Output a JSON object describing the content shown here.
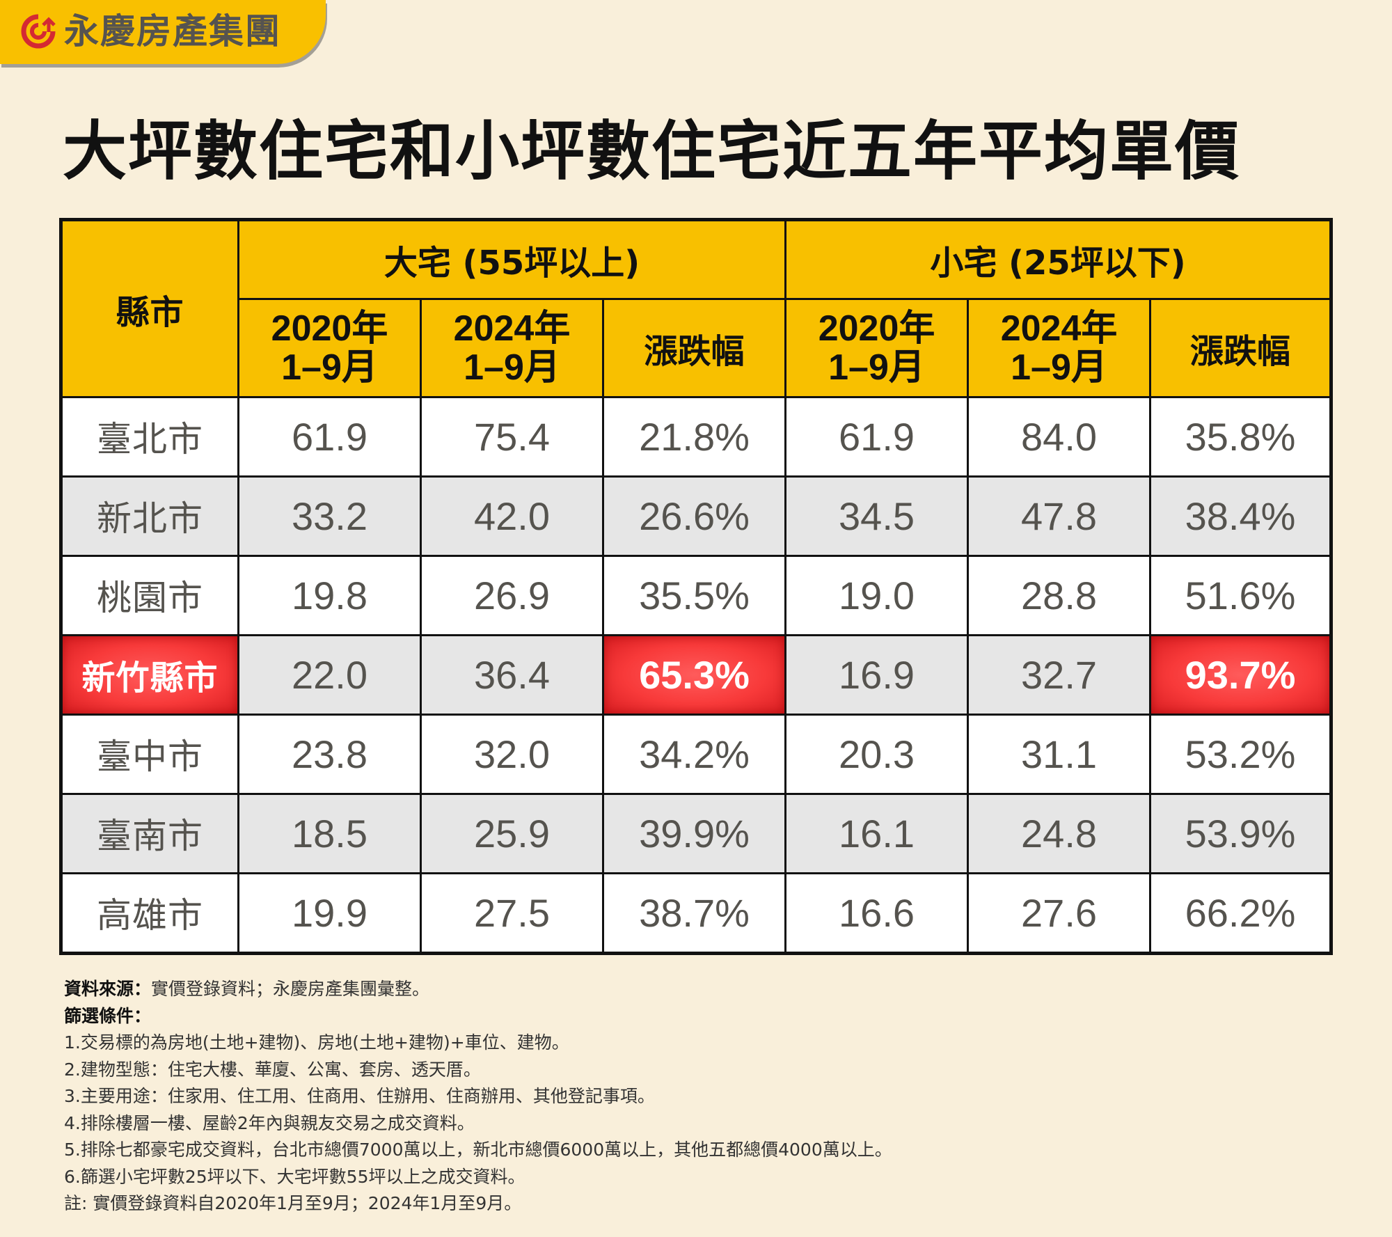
{
  "brand": {
    "name": "永慶房產集團",
    "logo_icon": "yongqing-logo-icon",
    "colors": {
      "banner": "#f9c000",
      "logo_red": "#d42a33",
      "text": "#555350"
    }
  },
  "title": "大坪數住宅和小坪數住宅近五年平均單價",
  "table": {
    "county_header": "縣市",
    "groups": [
      {
        "label": "大宅 (55坪以上)",
        "columns": [
          {
            "year": "2020年",
            "months": "1–9月"
          },
          {
            "year": "2024年",
            "months": "1–9月"
          },
          {
            "label": "漲跌幅"
          }
        ]
      },
      {
        "label": "小宅 (25坪以下)",
        "columns": [
          {
            "year": "2020年",
            "months": "1–9月"
          },
          {
            "year": "2024年",
            "months": "1–9月"
          },
          {
            "label": "漲跌幅"
          }
        ]
      }
    ],
    "rows": [
      {
        "county": "臺北市",
        "large_2020": "61.9",
        "large_2024": "75.4",
        "large_change": "21.8%",
        "small_2020": "61.9",
        "small_2024": "84.0",
        "small_change": "35.8%",
        "highlight": false
      },
      {
        "county": "新北市",
        "large_2020": "33.2",
        "large_2024": "42.0",
        "large_change": "26.6%",
        "small_2020": "34.5",
        "small_2024": "47.8",
        "small_change": "38.4%",
        "highlight": false
      },
      {
        "county": "桃園市",
        "large_2020": "19.8",
        "large_2024": "26.9",
        "large_change": "35.5%",
        "small_2020": "19.0",
        "small_2024": "28.8",
        "small_change": "51.6%",
        "highlight": false
      },
      {
        "county": "新竹縣市",
        "large_2020": "22.0",
        "large_2024": "36.4",
        "large_change": "65.3%",
        "small_2020": "16.9",
        "small_2024": "32.7",
        "small_change": "93.7%",
        "highlight": true
      },
      {
        "county": "臺中市",
        "large_2020": "23.8",
        "large_2024": "32.0",
        "large_change": "34.2%",
        "small_2020": "20.3",
        "small_2024": "31.1",
        "small_change": "53.2%",
        "highlight": false
      },
      {
        "county": "臺南市",
        "large_2020": "18.5",
        "large_2024": "25.9",
        "large_change": "39.9%",
        "small_2020": "16.1",
        "small_2024": "24.8",
        "small_change": "53.9%",
        "highlight": false
      },
      {
        "county": "高雄市",
        "large_2020": "19.9",
        "large_2024": "27.5",
        "large_change": "38.7%",
        "small_2020": "16.6",
        "small_2024": "27.6",
        "small_change": "66.2%",
        "highlight": false
      }
    ],
    "colors": {
      "header_bg": "#f8c000",
      "row_white": "#ffffff",
      "row_gray": "#e6e6e6",
      "highlight": "#f83a3a",
      "value_text": "#55534e"
    }
  },
  "footnotes": {
    "source_label": "資料來源：",
    "source_text": "實價登錄資料；永慶房產集團彙整。",
    "criteria_label": "篩選條件：",
    "items": [
      "1.交易標的為房地(土地+建物)、房地(土地+建物)+車位、建物。",
      "2.建物型態：住宅大樓、華廈、公寓、套房、透天厝。",
      "3.主要用途：住家用、住工用、住商用、住辦用、住商辦用、其他登記事項。",
      "4.排除樓層一樓、屋齡2年內與親友交易之成交資料。",
      "5.排除七都豪宅成交資料，台北市總價7000萬以上，新北市總價6000萬以上，其他五都總價4000萬以上。",
      "6.篩選小宅坪數25坪以下、大宅坪數55坪以上之成交資料。"
    ],
    "note": "註: 實價登錄資料自2020年1月至9月；2024年1月至9月。"
  }
}
